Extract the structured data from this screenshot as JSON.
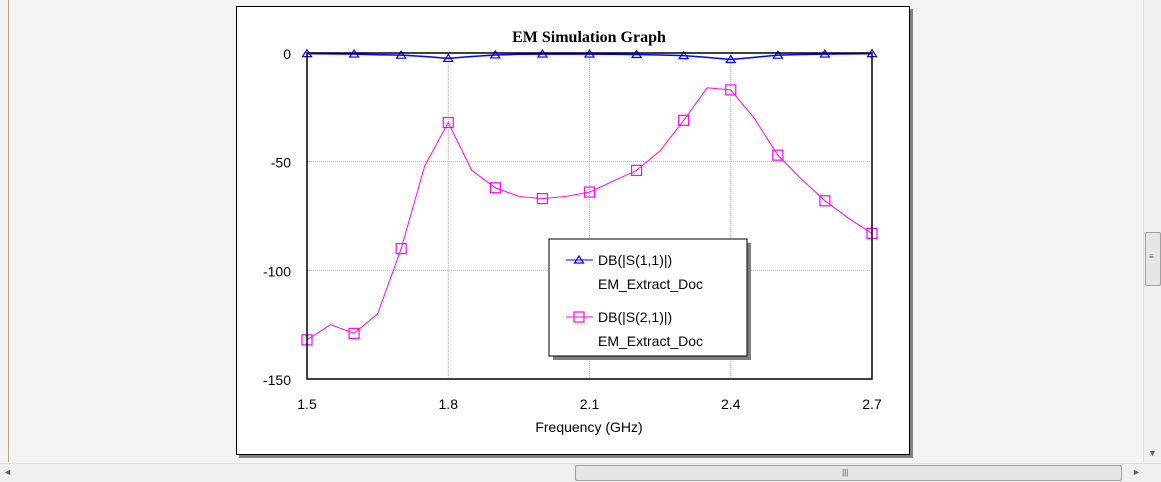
{
  "chart_data": {
    "type": "line",
    "title": "EM Simulation Graph",
    "xlabel": "Frequency (GHz)",
    "ylabel": "",
    "xlim": [
      1.5,
      2.7
    ],
    "ylim": [
      -150,
      0
    ],
    "xticks": [
      "1.5",
      "1.8",
      "2.1",
      "2.4",
      "2.7"
    ],
    "yticks": [
      "0",
      "-50",
      "-100",
      "-150"
    ],
    "grid": true,
    "legend_position": "center",
    "x": [
      1.5,
      1.55,
      1.6,
      1.65,
      1.7,
      1.75,
      1.8,
      1.85,
      1.9,
      1.95,
      2.0,
      2.05,
      2.1,
      2.15,
      2.2,
      2.25,
      2.3,
      2.35,
      2.4,
      2.45,
      2.5,
      2.55,
      2.6,
      2.65,
      2.7
    ],
    "series": [
      {
        "name": "DB(|S(1,1)|)",
        "source": "EM_Extract_Doc",
        "color": "#0000ff",
        "marker": "triangle",
        "values": [
          -0.3,
          -0.4,
          -0.5,
          -0.8,
          -1.0,
          -1.6,
          -2.5,
          -1.6,
          -0.9,
          -0.6,
          -0.5,
          -0.5,
          -0.5,
          -0.6,
          -0.7,
          -0.9,
          -1.2,
          -2.0,
          -3.0,
          -2.0,
          -1.0,
          -0.7,
          -0.5,
          -0.4,
          -0.3
        ]
      },
      {
        "name": "DB(|S(2,1)|)",
        "source": "EM_Extract_Doc",
        "color": "#ff00ff",
        "marker": "square",
        "values": [
          -132,
          -125,
          -129,
          -120,
          -90,
          -52,
          -32,
          -54,
          -62,
          -66,
          -67,
          -66,
          -64,
          -59,
          -54,
          -45,
          -31,
          -16,
          -17,
          -30,
          -47,
          -58,
          -68,
          -76,
          -83
        ]
      }
    ]
  }
}
